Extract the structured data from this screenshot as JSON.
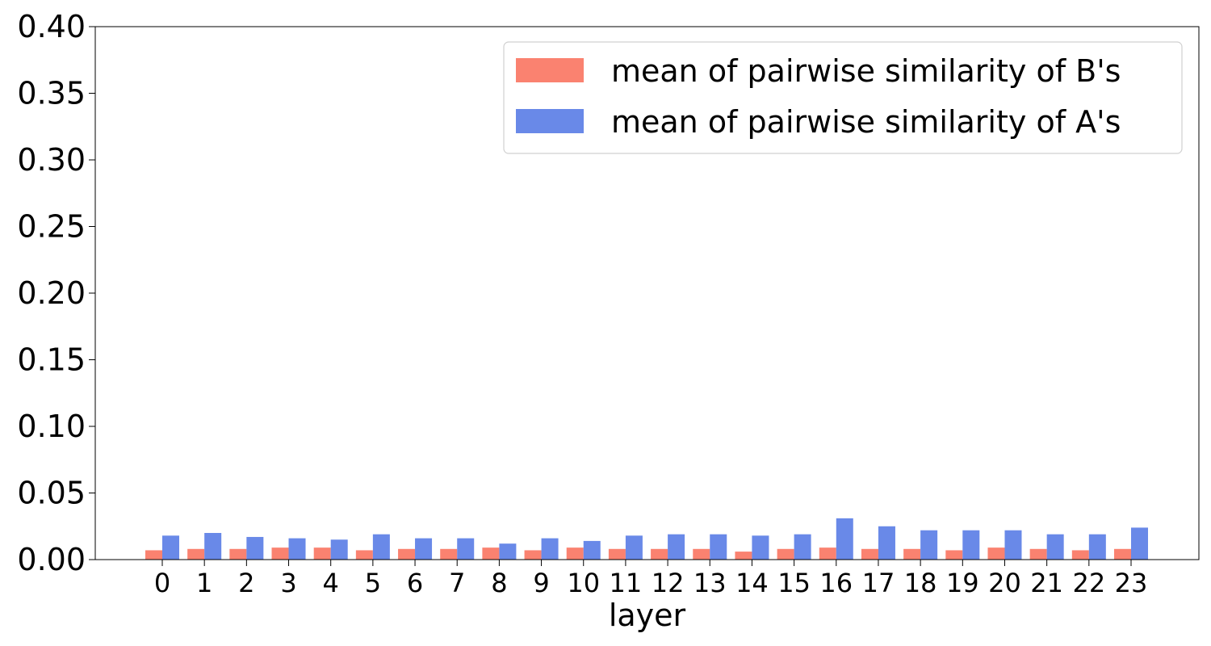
{
  "chart_data": {
    "type": "bar",
    "xlabel": "layer",
    "ylabel": "",
    "ylim": [
      0,
      0.4
    ],
    "yticks": [
      "0.00",
      "0.05",
      "0.10",
      "0.15",
      "0.20",
      "0.25",
      "0.30",
      "0.35",
      "0.40"
    ],
    "categories": [
      "0",
      "1",
      "2",
      "3",
      "4",
      "5",
      "6",
      "7",
      "8",
      "9",
      "10",
      "11",
      "12",
      "13",
      "14",
      "15",
      "16",
      "17",
      "18",
      "19",
      "20",
      "21",
      "22",
      "23"
    ],
    "series": [
      {
        "name": "mean of pairwise similarity of B's",
        "color": "#fa8270",
        "values": [
          0.007,
          0.008,
          0.008,
          0.009,
          0.009,
          0.007,
          0.008,
          0.008,
          0.009,
          0.007,
          0.009,
          0.008,
          0.008,
          0.008,
          0.006,
          0.008,
          0.009,
          0.008,
          0.008,
          0.007,
          0.009,
          0.008,
          0.007,
          0.008
        ]
      },
      {
        "name": "mean of pairwise similarity of A's",
        "color": "#6989e8",
        "values": [
          0.018,
          0.02,
          0.017,
          0.016,
          0.015,
          0.019,
          0.016,
          0.016,
          0.012,
          0.016,
          0.014,
          0.018,
          0.019,
          0.019,
          0.018,
          0.019,
          0.031,
          0.025,
          0.022,
          0.022,
          0.022,
          0.019,
          0.019,
          0.024
        ]
      }
    ],
    "grid": false,
    "legend_position": "top-right"
  }
}
